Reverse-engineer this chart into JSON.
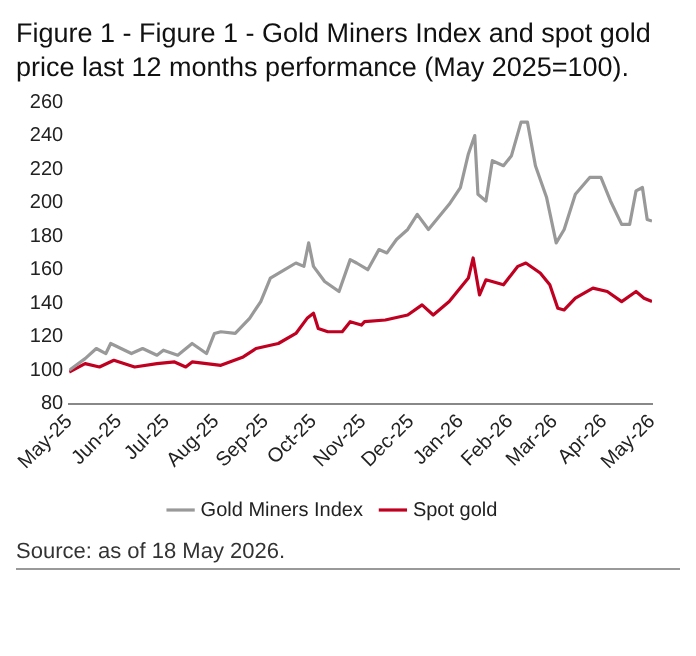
{
  "chart_data": {
    "type": "line",
    "title": "Figure 1 - Figure 1 - Gold Miners Index and spot gold price last 12 months performance (May 2025=100).",
    "annotations": [
      "Source: as of 18 May 2026."
    ],
    "xlim": [
      "2025-05-18",
      "2026-05-18"
    ],
    "xticks": [
      {
        "value": "2025-05-18",
        "label": "May-25"
      },
      {
        "value": "2025-06-18",
        "label": "Jun-25"
      },
      {
        "value": "2025-07-18",
        "label": "Jul-25"
      },
      {
        "value": "2025-08-18",
        "label": "Aug-25"
      },
      {
        "value": "2025-09-18",
        "label": "Sep-25"
      },
      {
        "value": "2025-10-18",
        "label": "Oct-25"
      },
      {
        "value": "2025-11-18",
        "label": "Nov-25"
      },
      {
        "value": "2025-12-18",
        "label": "Dec-25"
      },
      {
        "value": "2026-01-18",
        "label": "Jan-26"
      },
      {
        "value": "2026-02-18",
        "label": "Feb-26"
      },
      {
        "value": "2026-03-18",
        "label": "Mar-26"
      },
      {
        "value": "2026-04-18",
        "label": "Apr-26"
      },
      {
        "value": "2026-05-18",
        "label": "May-26"
      }
    ],
    "ylim": [
      80,
      260
    ],
    "yticks": [
      80,
      100,
      120,
      140,
      160,
      180,
      200,
      220,
      240,
      260
    ],
    "grid": false,
    "legend": "bottom",
    "marker": "none",
    "line_style": "solid",
    "series": [
      {
        "name": "Gold Miners Index",
        "color": "#999999",
        "x": [
          "2025-05-18",
          "2025-05-28",
          "2025-06-04",
          "2025-06-10",
          "2025-06-13",
          "2025-06-26",
          "2025-07-03",
          "2025-07-12",
          "2025-07-16",
          "2025-07-25",
          "2025-08-03",
          "2025-08-12",
          "2025-08-17",
          "2025-08-21",
          "2025-08-30",
          "2025-09-08",
          "2025-09-15",
          "2025-09-21",
          "2025-09-30",
          "2025-10-07",
          "2025-10-12",
          "2025-10-15",
          "2025-10-18",
          "2025-10-25",
          "2025-11-03",
          "2025-11-10",
          "2025-11-14",
          "2025-11-21",
          "2025-11-28",
          "2025-12-03",
          "2025-12-09",
          "2025-12-16",
          "2025-12-22",
          "2025-12-29",
          "2026-01-11",
          "2026-01-18",
          "2026-01-23",
          "2026-01-27",
          "2026-01-29",
          "2026-02-03",
          "2026-02-07",
          "2026-02-14",
          "2026-02-19",
          "2026-02-25",
          "2026-03-01",
          "2026-03-06",
          "2026-03-13",
          "2026-03-19",
          "2026-03-24",
          "2026-03-31",
          "2026-04-09",
          "2026-04-16",
          "2026-04-22",
          "2026-04-29",
          "2026-05-04",
          "2026-05-08",
          "2026-05-12",
          "2026-05-15",
          "2026-05-18"
        ],
        "values": [
          100,
          107,
          113,
          110,
          116,
          110,
          113,
          109,
          112,
          109,
          116,
          110,
          122,
          123,
          122,
          131,
          141,
          155,
          160,
          164,
          162,
          176,
          162,
          153,
          147,
          166,
          164,
          160,
          172,
          170,
          178,
          184,
          193,
          184,
          199,
          209,
          229,
          240,
          205,
          201,
          225,
          222,
          228,
          248,
          248,
          222,
          203,
          176,
          184,
          205,
          215,
          215,
          201,
          187,
          187,
          207,
          209,
          190,
          189
        ]
      },
      {
        "name": "Spot gold",
        "color": "#c00020",
        "x": [
          "2025-05-18",
          "2025-05-28",
          "2025-06-06",
          "2025-06-15",
          "2025-06-28",
          "2025-07-12",
          "2025-07-23",
          "2025-07-30",
          "2025-08-03",
          "2025-08-21",
          "2025-09-04",
          "2025-09-12",
          "2025-09-26",
          "2025-10-07",
          "2025-10-14",
          "2025-10-18",
          "2025-10-21",
          "2025-10-27",
          "2025-11-05",
          "2025-11-10",
          "2025-11-17",
          "2025-11-19",
          "2025-12-02",
          "2025-12-16",
          "2025-12-25",
          "2026-01-01",
          "2026-01-11",
          "2026-01-23",
          "2026-01-26",
          "2026-01-30",
          "2026-02-03",
          "2026-02-14",
          "2026-02-23",
          "2026-02-28",
          "2026-03-09",
          "2026-03-15",
          "2026-03-20",
          "2026-03-24",
          "2026-03-31",
          "2026-04-11",
          "2026-04-20",
          "2026-04-29",
          "2026-05-08",
          "2026-05-13",
          "2026-05-18"
        ],
        "values": [
          99,
          104,
          102,
          106,
          102,
          104,
          105,
          102,
          105,
          103,
          108,
          113,
          116,
          122,
          131,
          134,
          125,
          123,
          123,
          129,
          127,
          129,
          130,
          133,
          139,
          133,
          141,
          155,
          167,
          145,
          154,
          151,
          162,
          164,
          158,
          151,
          137,
          136,
          143,
          149,
          147,
          141,
          147,
          143,
          141
        ]
      }
    ]
  }
}
